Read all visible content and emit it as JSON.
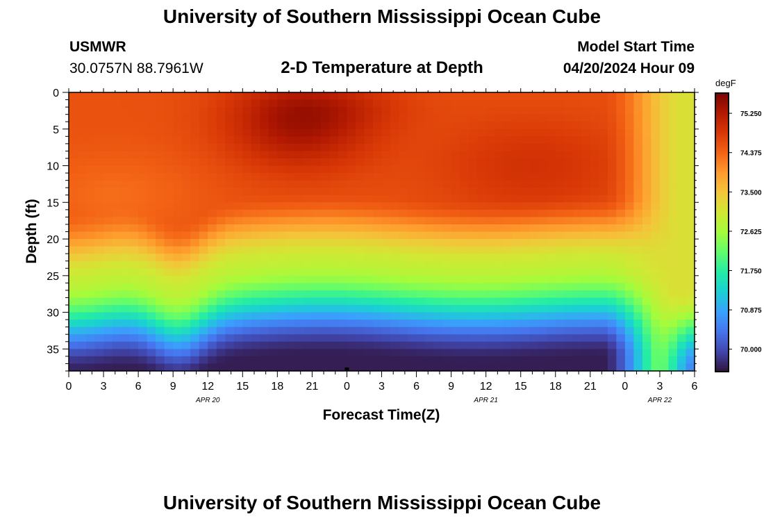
{
  "header": {
    "title": "University of Southern Mississippi Ocean Cube",
    "station": "USMWR",
    "coords": "30.0757N  88.7961W",
    "plot_title": "2-D Temperature at Depth",
    "model_start_label": "Model Start Time",
    "model_start_value": "04/20/2024 Hour 09"
  },
  "footer": {
    "title": "University of Southern Mississippi Ocean Cube"
  },
  "chart_data": {
    "type": "heatmap",
    "title": "2-D Temperature at Depth",
    "xlabel": "Forecast Time(Z)",
    "ylabel": "Depth (ft)",
    "x_ticks": [
      "0",
      "3",
      "6",
      "9",
      "12",
      "15",
      "18",
      "21",
      "0",
      "3",
      "6",
      "9",
      "12",
      "15",
      "18",
      "21",
      "0",
      "3",
      "6"
    ],
    "x_hours_range": [
      0,
      54
    ],
    "date_labels": [
      {
        "text": "APR 20",
        "hour": 12
      },
      {
        "text": "APR 21",
        "hour": 36
      },
      {
        "text": "APR 22",
        "hour": 51
      }
    ],
    "y_ticks": [
      0,
      5,
      10,
      15,
      20,
      25,
      30,
      35
    ],
    "ylim": [
      0,
      38
    ],
    "y_reversed": true,
    "colorbar": {
      "unit": "degF",
      "ticks": [
        75.25,
        74.375,
        73.5,
        72.625,
        71.75,
        70.875,
        70.0
      ],
      "tick_labels": [
        "75.250",
        "74.375",
        "73.500",
        "72.625",
        "71.750",
        "70.875",
        "70.000"
      ],
      "vmin": 69.5,
      "vmax": 75.7,
      "colors": [
        "#30123b",
        "#4145ab",
        "#4675ed",
        "#39a2fc",
        "#1bcfd4",
        "#24eca6",
        "#61fc6c",
        "#a4fc3b",
        "#d1e834",
        "#f3c63a",
        "#fe9b2d",
        "#f36315",
        "#d93806",
        "#b11901",
        "#7a0402"
      ]
    },
    "grid": false,
    "notes": "Values estimated from color: warm layer ~74.5-75.5 degF near surface (peak ~75.4 at hour ~20, 4 ft); cold layer ~69.5-70.5 degF near 38 ft; thermocline ~18-30 ft; column becomes near-uniform ~73.2 degF after hour ~50."
  }
}
